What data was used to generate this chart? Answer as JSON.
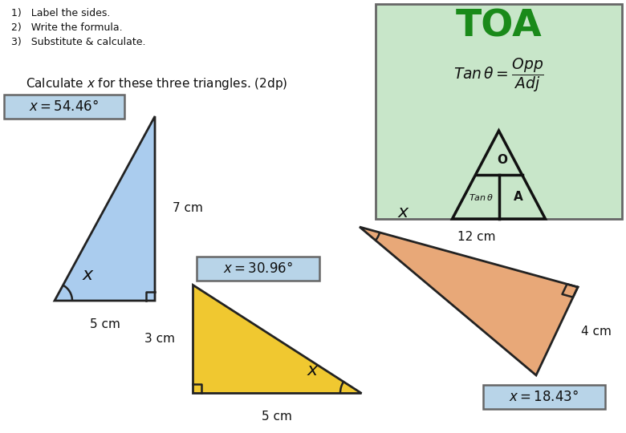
{
  "background_color": "#ffffff",
  "instructions": [
    "1)   Label the sides.",
    "2)   Write the formula.",
    "3)   Substitute & calculate."
  ],
  "calc_text": "Calculate $x$ for these three triangles. (2dp)",
  "toa_box_color": "#c8e6c9",
  "toa_box_border": "#666666",
  "toa_title": "TOA",
  "toa_title_color": "#1a8a1a",
  "tri1_color": "#aaccee",
  "tri1_border": "#222222",
  "tri1_label_x": "$x = 54.46°$",
  "tri1_side1": "7 cm",
  "tri1_side2": "5 cm",
  "tri2_color": "#f0c830",
  "tri2_border": "#222222",
  "tri2_label_x": "$x = 30.96°$",
  "tri2_side1": "3 cm",
  "tri2_side2": "5 cm",
  "tri3_color": "#e8a878",
  "tri3_border": "#222222",
  "tri3_label_x": "$x = 18.43°$",
  "tri3_side1": "12 cm",
  "tri3_side2": "4 cm",
  "label_box_color": "#b8d4e8",
  "label_box_border": "#666666"
}
